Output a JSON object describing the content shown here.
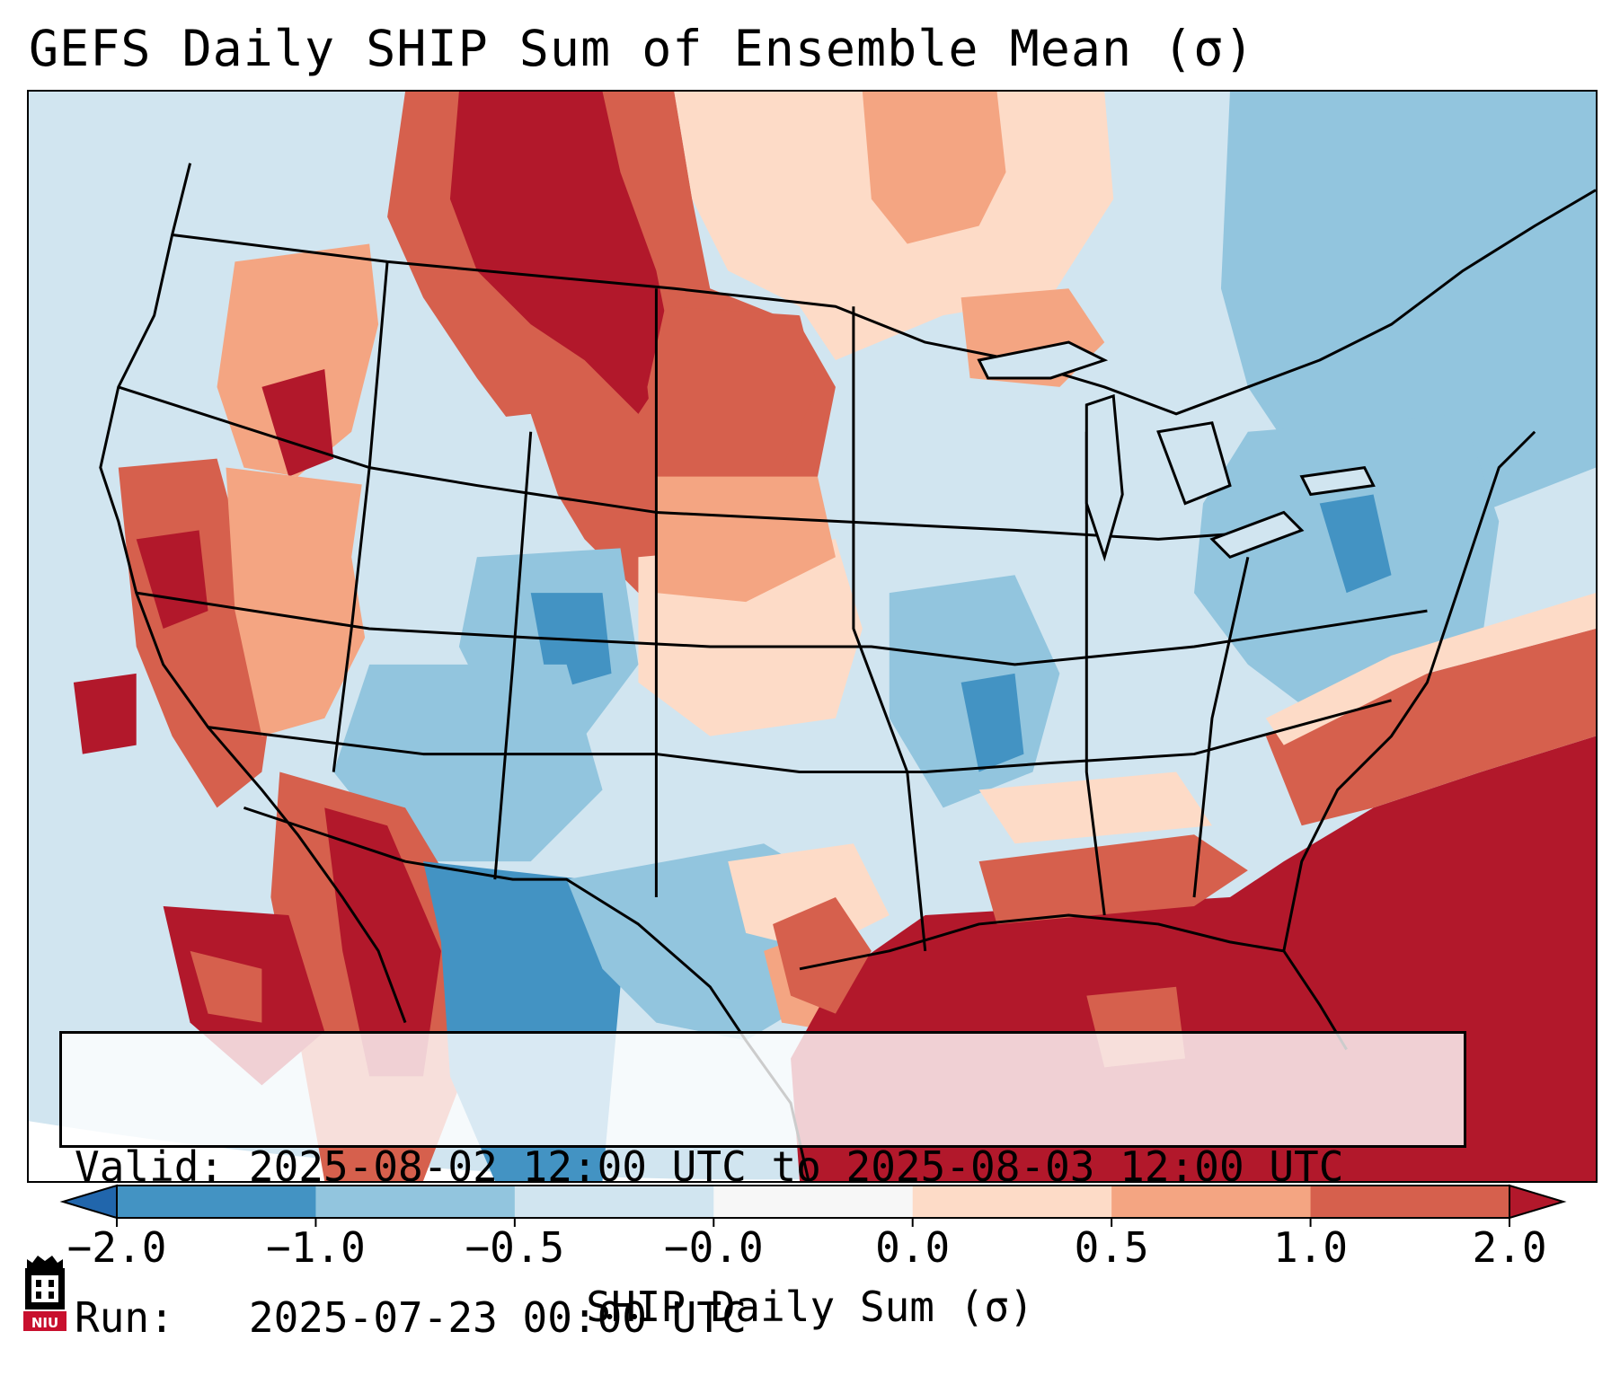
{
  "title": "GEFS Daily SHIP Sum of Ensemble Mean (σ)",
  "info": {
    "valid_label": "Valid:",
    "valid_value": "2025-08-02 12:00 UTC to 2025-08-03 12:00 UTC",
    "run_label": "Run:",
    "run_value": "2025-07-23 00:00 UTC"
  },
  "colorbar": {
    "label": "SHIP Daily Sum (σ)",
    "ticks": [
      "−2.0",
      "−1.0",
      "−0.5",
      "−0.0",
      "0.0",
      "0.5",
      "1.0",
      "2.0"
    ],
    "bin_colors": [
      "#2166ac",
      "#4393c3",
      "#92c5de",
      "#d1e5f0",
      "#f7f7f7",
      "#fddbc7",
      "#f4a582",
      "#d6604d",
      "#b2182b"
    ]
  },
  "logo": {
    "text": "NIU"
  },
  "colors": {
    "ocean_background": "#d1e5f0",
    "strong_positive": "#b2182b",
    "strong_negative": "#2166ac",
    "borders": "#000000"
  }
}
